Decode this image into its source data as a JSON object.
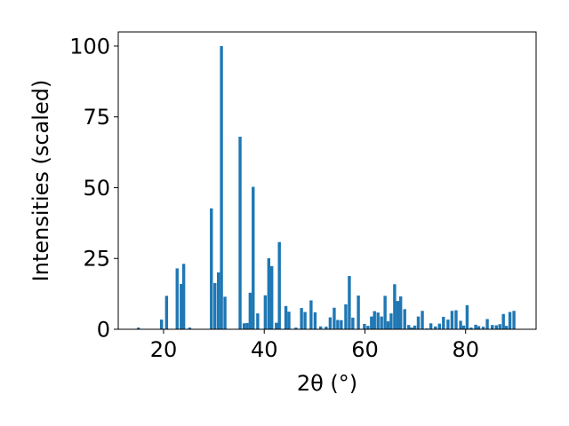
{
  "chart_data": {
    "type": "bar",
    "xlabel": "2θ (°)",
    "ylabel": "Intensities (scaled)",
    "xlim": [
      11,
      94
    ],
    "ylim": [
      0,
      105
    ],
    "x_ticks": [
      20,
      40,
      60,
      80
    ],
    "y_ticks": [
      0,
      25,
      50,
      75,
      100
    ],
    "bar_width": 0.6,
    "bar_color": "#1f77b4",
    "grid": false,
    "x": [
      15.0,
      19.6,
      20.6,
      22.7,
      23.5,
      24.0,
      25.2,
      29.5,
      30.2,
      30.9,
      31.5,
      32.2,
      35.2,
      36.0,
      36.6,
      37.2,
      37.8,
      38.7,
      40.2,
      40.9,
      41.5,
      42.4,
      43.0,
      44.3,
      44.9,
      46.3,
      47.4,
      48.1,
      49.3,
      50.1,
      51.2,
      52.3,
      53.1,
      53.9,
      54.6,
      55.3,
      56.2,
      56.9,
      57.6,
      58.7,
      59.9,
      60.6,
      61.3,
      61.9,
      62.6,
      63.3,
      64.0,
      64.6,
      65.2,
      65.9,
      66.5,
      67.1,
      67.9,
      68.7,
      69.3,
      69.9,
      70.6,
      71.4,
      72.3,
      73.1,
      74.0,
      74.8,
      75.6,
      76.5,
      77.3,
      78.1,
      79.0,
      79.6,
      80.3,
      81.1,
      82.0,
      82.6,
      83.5,
      84.3,
      85.3,
      86.1,
      86.8,
      87.5,
      88.1,
      88.8,
      89.6
    ],
    "values": [
      0.6,
      3.4,
      11.8,
      21.5,
      16.0,
      23.1,
      0.6,
      42.7,
      16.3,
      20.1,
      100.0,
      11.5,
      68.0,
      2.1,
      2.2,
      12.9,
      50.3,
      5.6,
      12.0,
      25.1,
      22.3,
      2.3,
      30.8,
      8.2,
      6.2,
      0.6,
      7.5,
      6.1,
      10.2,
      6.0,
      1.0,
      0.9,
      4.2,
      7.6,
      3.3,
      3.2,
      8.8,
      18.8,
      4.1,
      11.9,
      1.9,
      1.2,
      4.5,
      6.4,
      5.9,
      4.5,
      11.8,
      2.8,
      5.6,
      15.9,
      10.0,
      11.6,
      7.1,
      1.5,
      0.6,
      1.3,
      4.5,
      6.5,
      0.3,
      2.1,
      1.0,
      2.0,
      4.4,
      3.4,
      6.5,
      6.7,
      3.0,
      1.3,
      8.5,
      0.6,
      1.6,
      1.1,
      0.9,
      3.6,
      1.5,
      1.4,
      1.8,
      5.4,
      1.2,
      6.1,
      6.5
    ]
  }
}
